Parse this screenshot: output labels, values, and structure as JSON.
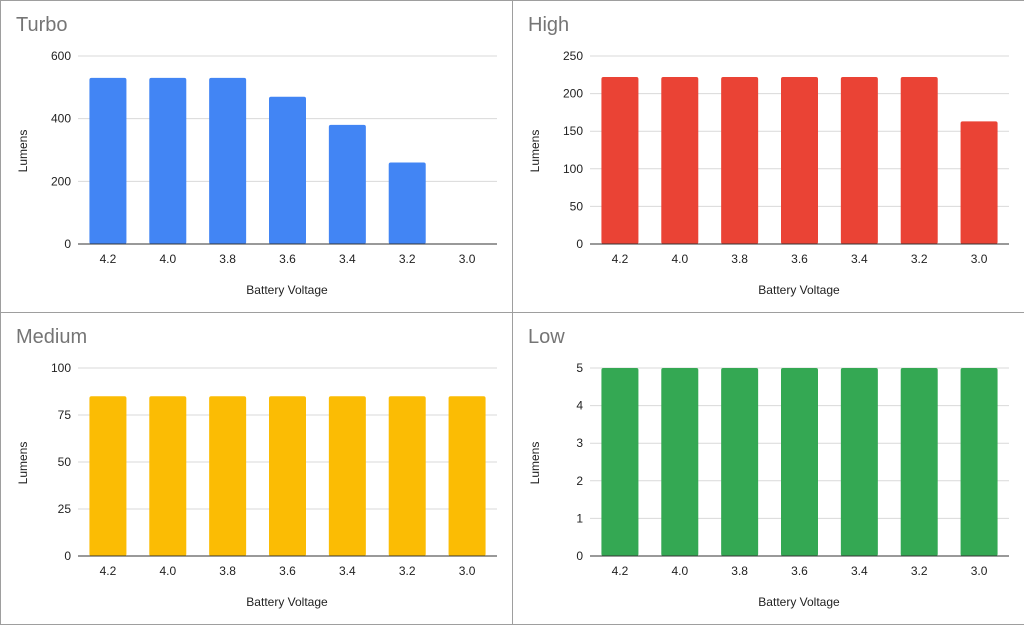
{
  "chart_data": [
    {
      "type": "bar",
      "title": "Turbo",
      "xlabel": "Battery Voltage",
      "ylabel": "Lumens",
      "categories": [
        "4.2",
        "4.0",
        "3.8",
        "3.6",
        "3.4",
        "3.2",
        "3.0"
      ],
      "values": [
        530,
        530,
        530,
        470,
        380,
        260,
        0
      ],
      "ylim": [
        0,
        600
      ],
      "yticks": [
        "0",
        "200",
        "400",
        "600"
      ],
      "yticks_values": [
        0,
        200,
        400,
        600
      ],
      "color": "#4285f4",
      "grid": true,
      "legend": "none"
    },
    {
      "type": "bar",
      "title": "High",
      "xlabel": "Battery Voltage",
      "ylabel": "Lumens",
      "categories": [
        "4.2",
        "4.0",
        "3.8",
        "3.6",
        "3.4",
        "3.2",
        "3.0"
      ],
      "values": [
        222,
        222,
        222,
        222,
        222,
        222,
        163
      ],
      "ylim": [
        0,
        250
      ],
      "yticks": [
        "0",
        "50",
        "100",
        "150",
        "200",
        "250"
      ],
      "yticks_values": [
        0,
        50,
        100,
        150,
        200,
        250
      ],
      "color": "#ea4335",
      "grid": true,
      "legend": "none"
    },
    {
      "type": "bar",
      "title": "Medium",
      "xlabel": "Battery Voltage",
      "ylabel": "Lumens",
      "categories": [
        "4.2",
        "4.0",
        "3.8",
        "3.6",
        "3.4",
        "3.2",
        "3.0"
      ],
      "values": [
        85,
        85,
        85,
        85,
        85,
        85,
        85
      ],
      "ylim": [
        0,
        100
      ],
      "yticks": [
        "0",
        "25",
        "50",
        "75",
        "100"
      ],
      "yticks_values": [
        0,
        25,
        50,
        75,
        100
      ],
      "color": "#fbbc04",
      "grid": true,
      "legend": "none"
    },
    {
      "type": "bar",
      "title": "Low",
      "xlabel": "Battery Voltage",
      "ylabel": "Lumens",
      "categories": [
        "4.2",
        "4.0",
        "3.8",
        "3.6",
        "3.4",
        "3.2",
        "3.0"
      ],
      "values": [
        5,
        5,
        5,
        5,
        5,
        5,
        5
      ],
      "ylim": [
        0,
        5
      ],
      "yticks": [
        "0",
        "1",
        "2",
        "3",
        "4",
        "5"
      ],
      "yticks_values": [
        0,
        1,
        2,
        3,
        4,
        5
      ],
      "color": "#34a853",
      "grid": true,
      "legend": "none"
    }
  ]
}
